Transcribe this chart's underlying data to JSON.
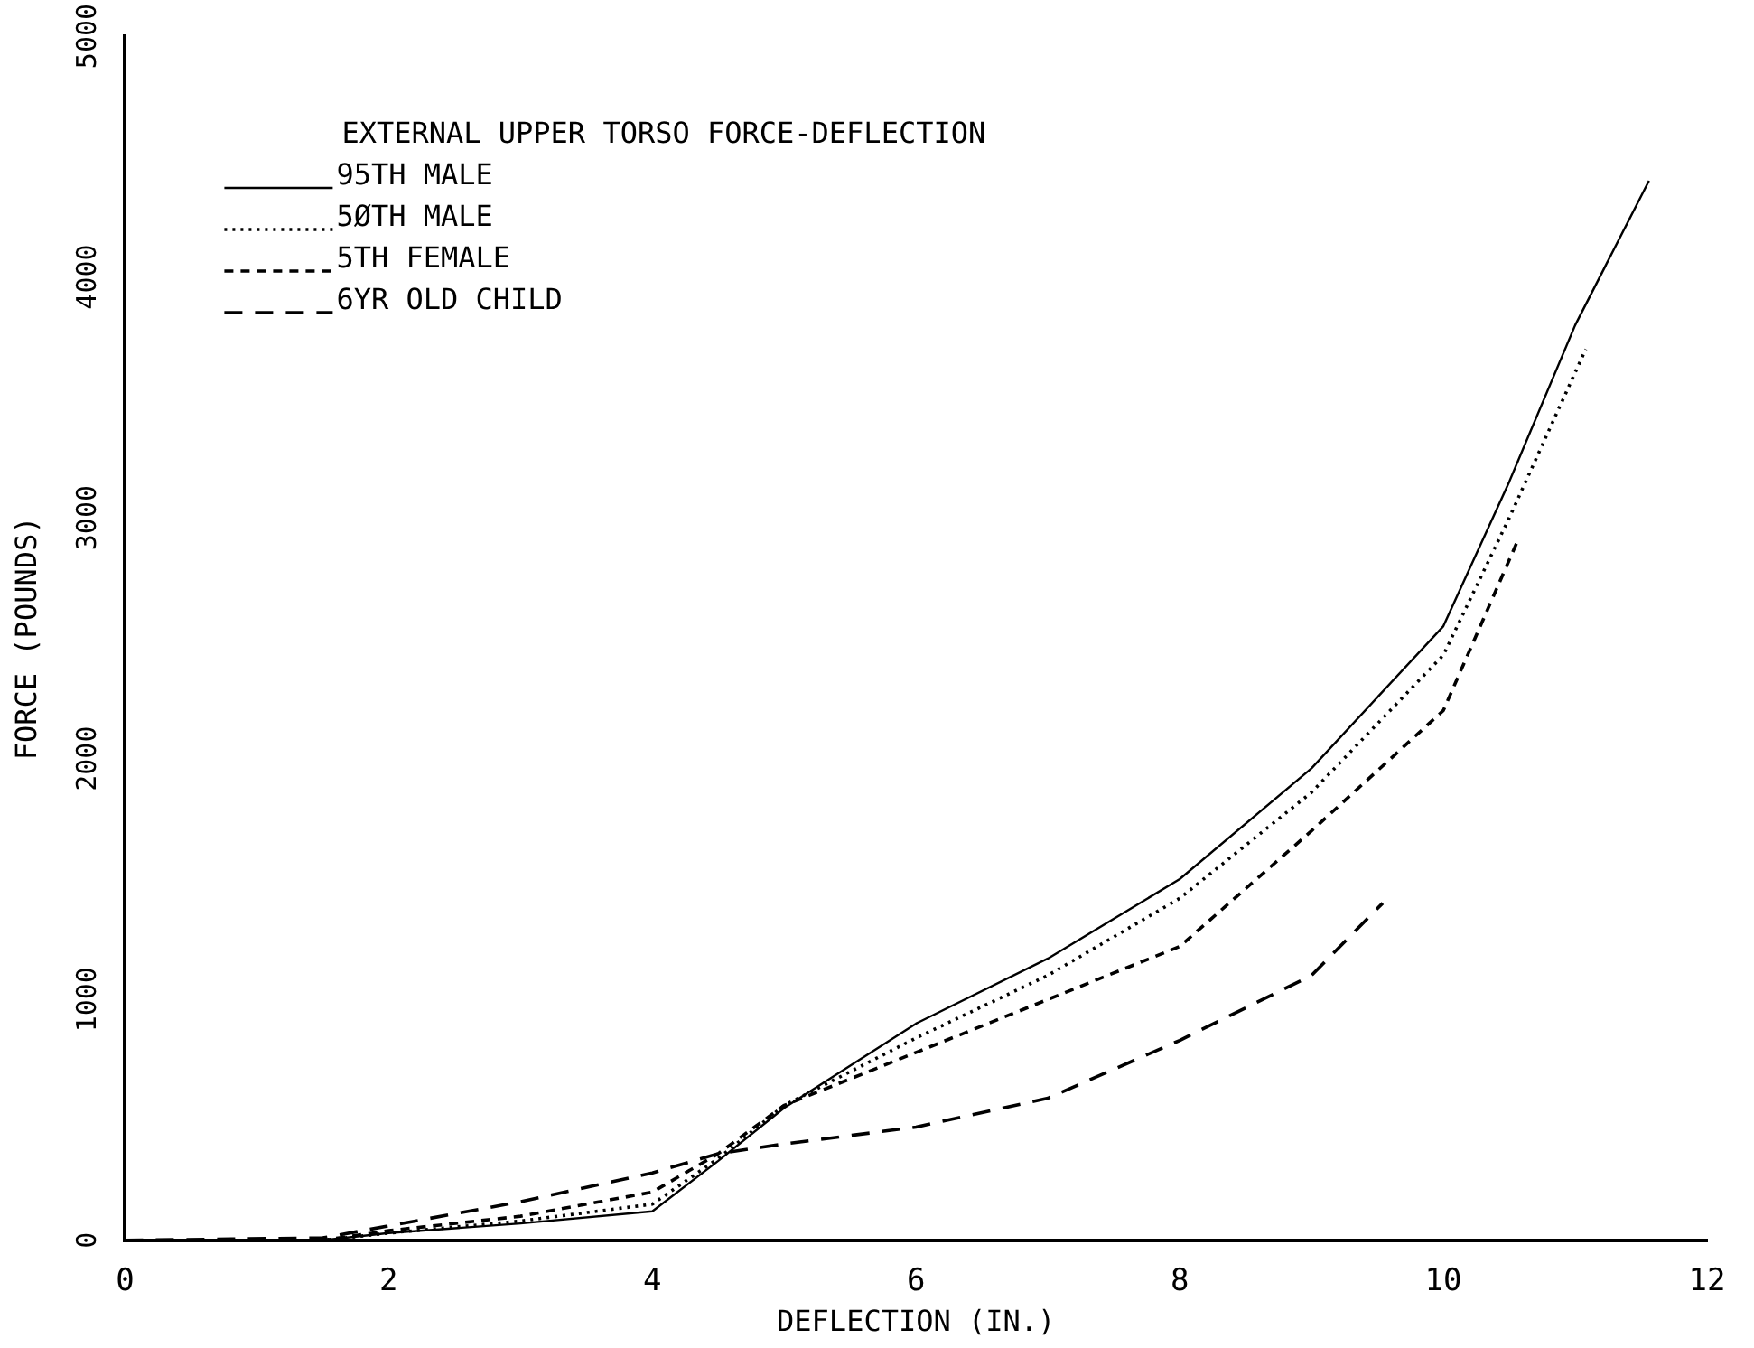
{
  "chart_data": {
    "type": "line",
    "title": "EXTERNAL UPPER TORSO FORCE-DEFLECTION",
    "xlabel": "DEFLECTION (IN.)",
    "ylabel": "FORCE (POUNDS)",
    "xlim": [
      0,
      12
    ],
    "xticks": [
      0,
      2,
      4,
      6,
      8,
      10,
      12
    ],
    "ylim": [
      0,
      5000
    ],
    "yticks": [
      0,
      1000,
      2000,
      3000,
      4000,
      5000
    ],
    "grid": false,
    "legend": "top left",
    "marker": "none",
    "series": [
      {
        "name": "95TH MALE",
        "color": "#000000",
        "line_style": "solid",
        "x": [
          0,
          1.5,
          2,
          3,
          4,
          4.5,
          5,
          6,
          7,
          8,
          9,
          10,
          10.5,
          11,
          11.56
        ],
        "values": [
          0,
          0,
          30,
          70,
          120,
          330,
          550,
          900,
          1170,
          1500,
          1960,
          2550,
          3150,
          3800,
          4400
        ]
      },
      {
        "name": "5ØTH MALE",
        "color": "#000000",
        "line_style": "dotted",
        "x": [
          0,
          1.5,
          2,
          3,
          4,
          4.5,
          5,
          6,
          7,
          8,
          9,
          10,
          10.5,
          11.08
        ],
        "values": [
          0,
          0,
          30,
          80,
          150,
          340,
          560,
          840,
          1100,
          1420,
          1860,
          2430,
          3000,
          3700
        ]
      },
      {
        "name": "5TH FEMALE",
        "color": "#000000",
        "line_style": "dashed",
        "x": [
          0,
          1.5,
          2,
          3,
          4,
          4.5,
          5,
          6,
          7,
          8,
          9,
          10,
          10.56
        ],
        "values": [
          0,
          0,
          40,
          100,
          200,
          360,
          560,
          780,
          1000,
          1220,
          1700,
          2200,
          2900
        ]
      },
      {
        "name": "6YR OLD CHILD",
        "color": "#000000",
        "line_style": "dashed",
        "x": [
          0,
          1.5,
          2,
          3,
          4,
          4.5,
          5,
          6,
          7,
          8,
          9,
          9.54
        ],
        "values": [
          0,
          10,
          60,
          160,
          280,
          360,
          400,
          470,
          590,
          830,
          1100,
          1400
        ]
      }
    ]
  }
}
